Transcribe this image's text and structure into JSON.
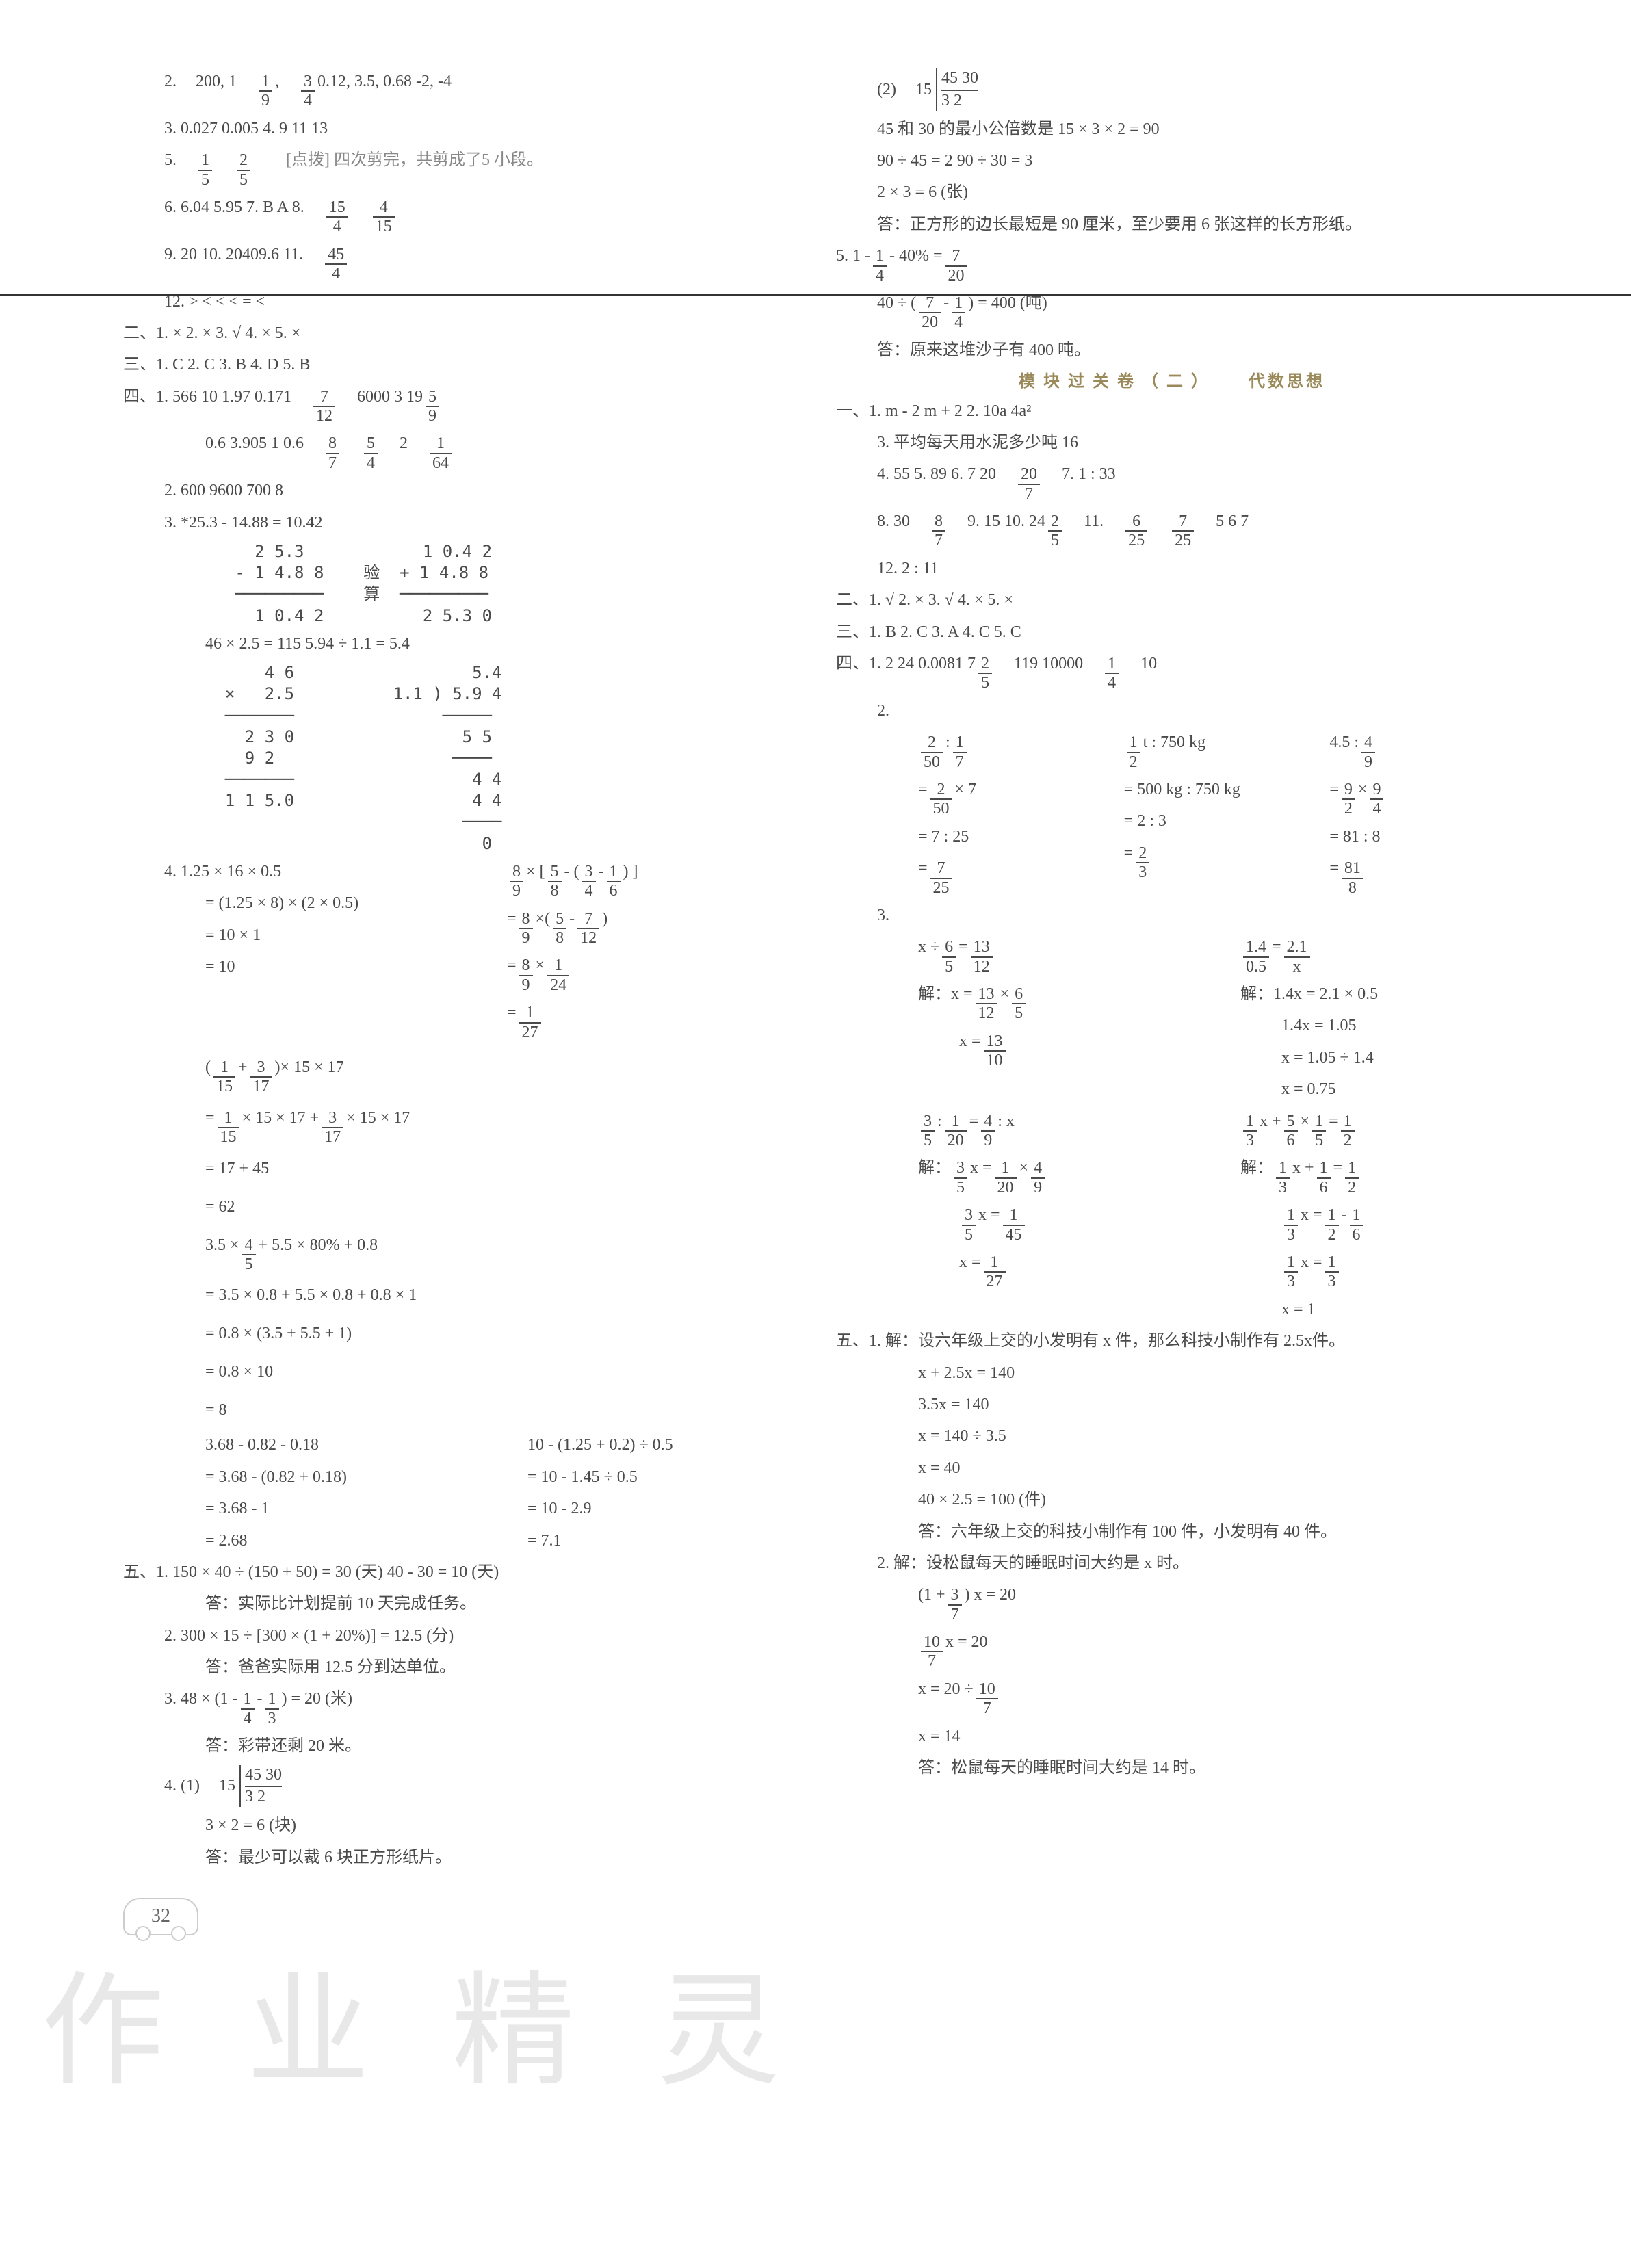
{
  "left": {
    "q2": [
      "2.",
      "200, 1",
      "1",
      "9",
      ",",
      "3",
      "4",
      "  0.12, 3.5, 0.68   -2, -4"
    ],
    "q3": "3.  0.027   0.005   4.  9   11   13",
    "q5": [
      "5.",
      "1",
      "5",
      "2",
      "5",
      "[点拨] 四次剪完，共剪成了5 小段。"
    ],
    "q6": [
      "6.  6.04   5.95   7.  B   A   8.",
      "15",
      "4",
      "4",
      "15"
    ],
    "q9": "9.  20   10.  20409.6   11.",
    "q11f": [
      "45",
      "4"
    ],
    "q12": "12.   >    <    <    <    =    <",
    "s2": "二、1.  ×   2.  ×   3.  √   4.  ×   5.  ×",
    "s3": "三、1.  C   2.  C   3.  B   4.  D   5.  B",
    "s4_1a": [
      "四、1.   566   10   1.97   0.171",
      "7",
      "12",
      "6000   3   19",
      "5",
      "9"
    ],
    "s4_1b": [
      "0.6   3.905   1   0.6",
      "8",
      "7",
      "5",
      "4",
      "2",
      "1",
      "64"
    ],
    "s4_2": "2.   600   9600   700   8",
    "s4_3_head": "3.    *25.3 - 14.88 = 10.42",
    "calc1": "     2 5.3            1 0.4 2\n   - 1 4.8 8    验  + 1 4.8 8\n   ─────────    算  ─────────\n     1 0.4 2          2 5.3 0",
    "s4_3b": "46 × 2.5 = 115        5.94 ÷ 1.1 = 5.4",
    "calc2": "      4 6                  5.4\n  ×   2.5          1.1 ) 5.9 4\n  ───────               ─────\n    2 3 0                 5 5\n    9 2                  ────\n  ───────                  4 4\n  1 1 5.0                  4 4\n                          ────\n                            0",
    "s4_4_head": "4.     1.25 × 16 × 0.5",
    "s4_4_right_head": [
      "8",
      "9",
      "5",
      "8",
      "3",
      "4",
      "1",
      "6"
    ],
    "s4_4_lines": [
      "= (1.25 × 8) × (2 × 0.5)",
      "= 10 × 1",
      "= 10"
    ],
    "s4_4_right": [
      [
        "=",
        "8",
        "9",
        "×",
        "(",
        "5",
        "8",
        "-",
        "7",
        "12",
        ")"
      ],
      [
        "=",
        "8",
        "9",
        "×",
        "1",
        "24"
      ],
      [
        "=",
        "1",
        "27"
      ]
    ],
    "s4_4c_head": [
      "(",
      "1",
      "15",
      "+",
      "3",
      "17",
      ")",
      "× 15 × 17"
    ],
    "s4_4c_lines": [
      [
        "=",
        "1",
        "15",
        "× 15 × 17 +",
        "3",
        "17",
        "× 15 × 17"
      ],
      "= 17 + 45",
      "= 62"
    ],
    "s4_4d_head": [
      "3.5 ×",
      "4",
      "5",
      "+ 5.5 × 80% + 0.8"
    ],
    "s4_4d_lines": [
      "= 3.5 × 0.8 + 5.5 × 0.8 + 0.8 × 1",
      "= 0.8 × (3.5 + 5.5 + 1)",
      "= 0.8 × 10",
      "= 8"
    ],
    "s4_4e": {
      "l": [
        "3.68 - 0.82 - 0.18",
        "= 3.68 - (0.82 + 0.18)",
        "= 3.68 - 1",
        "= 2.68"
      ],
      "r": [
        "10 - (1.25 + 0.2) ÷ 0.5",
        "= 10 - 1.45 ÷ 0.5",
        "= 10 - 2.9",
        "= 7.1"
      ]
    },
    "s5_1a": "五、1.   150 × 40 ÷ (150 + 50) = 30 (天)     40 - 30 = 10 (天)",
    "s5_1b": "答：实际比计划提前 10 天完成任务。",
    "s5_2a": "2.   300 × 15 ÷ [300 × (1 + 20%)] = 12.5 (分)",
    "s5_2b": "答：爸爸实际用 12.5 分到达单位。",
    "s5_3a": [
      "3.   48 × (1 -",
      "1",
      "4",
      "-",
      "1",
      "3",
      ") = 20 (米)"
    ],
    "s5_3b": "答：彩带还剩 20 米。",
    "s5_4_head": "4.  (1)",
    "s5_4_div": [
      "15",
      "45   30",
      "3     2"
    ],
    "s5_4a": "3 × 2 = 6 (块)",
    "s5_4b": "答：最少可以裁 6 块正方形纸片。",
    "page_num": "32"
  },
  "right": {
    "r_4_2_head": "(2)",
    "r_4_2_div": [
      "15",
      "45   30",
      "3     2"
    ],
    "r_4_2a": "45 和 30 的最小公倍数是 15 × 3 × 2 = 90",
    "r_4_2b": "90 ÷ 45 = 2    90 ÷ 30 = 3",
    "r_4_2c": "2 × 3 = 6 (张)",
    "r_4_2d": "答：正方形的边长最短是 90 厘米，至少要用 6 张这样的长方形纸。",
    "r_5a": [
      "5.    1 -",
      "1",
      "4",
      "- 40% =",
      "7",
      "20"
    ],
    "r_5b": [
      "40 ÷ (",
      "7",
      "20",
      "-",
      "1",
      "4",
      ") = 400 (吨)"
    ],
    "r_5c": "答：原来这堆沙子有 400 吨。",
    "mod_title": "模块过关卷（二）",
    "mod_sub": "代数思想",
    "m1_1": "一、1.   m - 2    m + 2    2.   10a   4a²",
    "m1_3": "3.   平均每天用水泥多少吨   16",
    "m1_4": [
      "4.   55   5.  89   6.  7   20",
      "20",
      "7",
      "7.  1 : 33"
    ],
    "m1_8": [
      "8.   30",
      "8",
      "7",
      "9.  15   10.  24",
      "2",
      "5",
      "11.",
      "6",
      "25",
      "7",
      "25",
      "5   6   7"
    ],
    "m1_12": "12.   2 : 11",
    "m2": "二、1.  √   2.  ×   3.  √   4.  ×   5.  ×",
    "m3": "三、1.  B   2.  C   3.  A   4.  C   5.  C",
    "m4_1": [
      "四、1.   2   24   0.0081   7",
      "2",
      "5",
      "119   10000",
      "1",
      "4",
      "10"
    ],
    "m4_2": {
      "c1": [
        [
          "",
          "2",
          "50",
          ":",
          "1",
          "7"
        ],
        [
          "=",
          "2",
          "50",
          "× 7"
        ],
        "= 7 : 25",
        [
          "=",
          "7",
          "25"
        ]
      ],
      "c2": [
        [
          "",
          "1",
          "2",
          " t : 750 kg"
        ],
        "= 500 kg : 750 kg",
        "= 2 : 3",
        [
          "=",
          "2",
          "3"
        ]
      ],
      "c3": [
        [
          "4.5 :",
          "4",
          "9"
        ],
        [
          "=",
          "9",
          "2",
          "×",
          "9",
          "4"
        ],
        "= 81 : 8",
        [
          "=",
          "81",
          "8"
        ]
      ]
    },
    "m4_3": {
      "a": {
        "head": [
          "x ÷",
          "6",
          "5",
          "=",
          "13",
          "12"
        ],
        "sol_label": "解：",
        "lines": [
          [
            "x =",
            "13",
            "12",
            "×",
            "6",
            "5"
          ],
          [
            "x =",
            "13",
            "10"
          ]
        ]
      },
      "b": {
        "head": [
          "1.4",
          "0.5",
          "=",
          "2.1",
          "x"
        ],
        "sol_label": "解：",
        "lines": [
          "1.4x = 2.1 × 0.5",
          "1.4x = 1.05",
          "x = 1.05 ÷ 1.4",
          "x = 0.75"
        ]
      },
      "c": {
        "head": [
          "3",
          "5",
          ":",
          "1",
          "20",
          "=",
          "4",
          "9",
          ": x"
        ],
        "sol_label": "解：",
        "lines": [
          [
            "3",
            "5",
            "x =",
            "1",
            "20",
            "×",
            "4",
            "9"
          ],
          [
            "3",
            "5",
            "x =",
            "1",
            "45"
          ],
          [
            "x =",
            "1",
            "27"
          ]
        ]
      },
      "d": {
        "head": [
          "1",
          "3",
          "x +",
          "5",
          "6",
          "×",
          "1",
          "5",
          "=",
          "1",
          "2"
        ],
        "sol_label": "解：",
        "lines": [
          [
            "1",
            "3",
            "x +",
            "1",
            "6",
            "=",
            "1",
            "2"
          ],
          [
            "1",
            "3",
            "x =",
            "1",
            "2",
            "-",
            "1",
            "6"
          ],
          [
            "1",
            "3",
            "x =",
            "1",
            "3"
          ],
          "x = 1"
        ]
      }
    },
    "m5_1_head": "五、1.  解：设六年级上交的小发明有 x 件，那么科技小制作有 2.5x件。",
    "m5_1_lines": [
      "x + 2.5x = 140",
      "3.5x = 140",
      "x = 140 ÷ 3.5",
      "x = 40",
      "40 × 2.5 = 100 (件)"
    ],
    "m5_1_ans": "答：六年级上交的科技小制作有 100 件，小发明有 40 件。",
    "m5_2_head": "2.  解：设松鼠每天的睡眠时间大约是 x 时。",
    "m5_2_lines": [
      [
        "(1 +",
        "3",
        "7",
        ") x = 20"
      ],
      [
        "10",
        "7",
        "x = 20"
      ],
      [
        "x = 20 ÷",
        "10",
        "7"
      ],
      "x = 14"
    ],
    "m5_2_ans": "答：松鼠每天的睡眠时间大约是 14 时。"
  }
}
